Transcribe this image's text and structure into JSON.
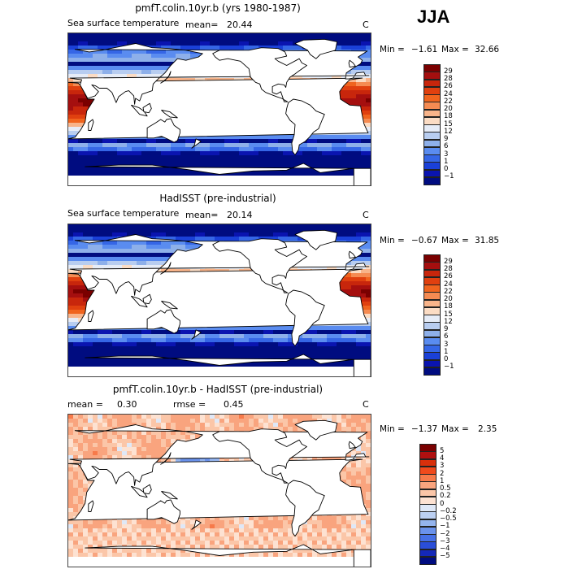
{
  "season": "JJA",
  "colors": {
    "map_continents": "#ffffff",
    "coastline": "#000000",
    "frame": "#444444"
  },
  "panels": [
    {
      "title": "pmfT.colin.10yr.b (yrs 1980-1987)",
      "left_label": "Sea surface temperature",
      "mean_label": "mean=",
      "mean_value": "20.44",
      "units": "C",
      "min_label": "Min =",
      "min_value": "−1.61",
      "max_label": "Max =",
      "max_value": "32.66",
      "colorbar": {
        "labels": [
          "29",
          "28",
          "26",
          "24",
          "22",
          "20",
          "18",
          "15",
          "12",
          "9",
          "6",
          "3",
          "1",
          "0",
          "−1"
        ],
        "colors": [
          "#7a0000",
          "#a50f0f",
          "#c8260c",
          "#e0400f",
          "#f0641e",
          "#f58b52",
          "#f8b48a",
          "#fbdcc4",
          "#e6ecf7",
          "#b8cdf0",
          "#8eb0ea",
          "#5a8cf0",
          "#3566e6",
          "#1a40d8",
          "#0a14b0",
          "#000c80"
        ]
      },
      "field": "absolute"
    },
    {
      "title": "HadISST (pre-industrial)",
      "left_label": "Sea surface temperature",
      "mean_label": "mean=",
      "mean_value": "20.14",
      "units": "C",
      "min_label": "Min =",
      "min_value": "−0.67",
      "max_label": "Max =",
      "max_value": "31.85",
      "colorbar": {
        "labels": [
          "29",
          "28",
          "26",
          "24",
          "22",
          "20",
          "18",
          "15",
          "12",
          "9",
          "6",
          "3",
          "1",
          "0",
          "−1"
        ],
        "colors": [
          "#7a0000",
          "#a50f0f",
          "#c8260c",
          "#e0400f",
          "#f0641e",
          "#f58b52",
          "#f8b48a",
          "#fbdcc4",
          "#e6ecf7",
          "#b8cdf0",
          "#8eb0ea",
          "#5a8cf0",
          "#3566e6",
          "#1a40d8",
          "#0a14b0",
          "#000c80"
        ]
      },
      "field": "absolute"
    },
    {
      "title": "pmfT.colin.10yr.b - HadISST (pre-industrial)",
      "left_label": "",
      "mean_label": "mean =",
      "mean_value": "0.30",
      "rmse_label": "rmse =",
      "rmse_value": "0.45",
      "units": "C",
      "min_label": "Min =",
      "min_value": "−1.37",
      "max_label": "Max =",
      "max_value": "2.35",
      "colorbar": {
        "labels": [
          "5",
          "4",
          "3",
          "2",
          "1",
          "0.5",
          "0.2",
          "0",
          "−0.2",
          "−0.5",
          "−1",
          "−2",
          "−3",
          "−4",
          "−5"
        ],
        "colors": [
          "#7a0000",
          "#b01010",
          "#d8300c",
          "#f04a1c",
          "#f77a4a",
          "#f9a47e",
          "#fbc6a8",
          "#fde2d2",
          "#dfe8f7",
          "#bcd0f2",
          "#94b4ee",
          "#6a92ec",
          "#4670e6",
          "#2a4ed8",
          "#1428b8",
          "#000c80"
        ]
      },
      "field": "difference"
    }
  ]
}
